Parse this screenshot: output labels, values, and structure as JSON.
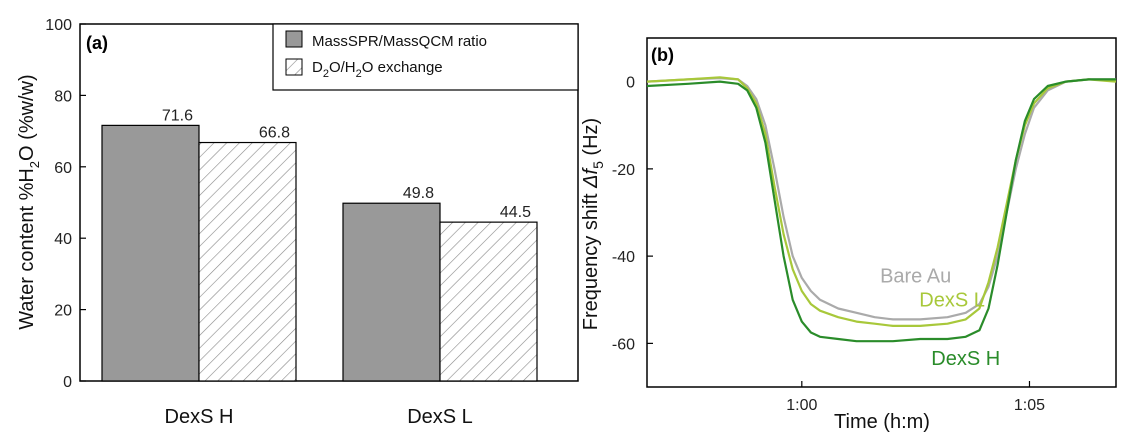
{
  "chart_data": [
    {
      "type": "bar",
      "panel_label": "(a)",
      "ylabel_parts": [
        "Water content %H",
        "2",
        "O (%w/w)"
      ],
      "ylim": [
        0,
        100
      ],
      "yticks": [
        0,
        20,
        40,
        60,
        80,
        100
      ],
      "categories": [
        "DexS H",
        "DexS L"
      ],
      "series": [
        {
          "name": "MassSPR/MassQCM ratio",
          "values": [
            71.6,
            49.8
          ],
          "fill": "#999999",
          "pattern": "solid"
        },
        {
          "name_parts": [
            "D",
            "2",
            "O/H",
            "2",
            "O exchange"
          ],
          "values": [
            66.8,
            44.5
          ],
          "fill": "#ffffff",
          "pattern": "hatch"
        }
      ],
      "data_labels": [
        "71.6",
        "66.8",
        "49.8",
        "44.5"
      ],
      "legend_position": "top-right"
    },
    {
      "type": "line",
      "panel_label": "(b)",
      "xlabel": "Time (h:m)",
      "ylabel_parts": [
        "Frequency shift ",
        "Δf",
        "5",
        " (Hz)"
      ],
      "xticks": [
        "1:00",
        "1:05"
      ],
      "xtick_minutes": [
        0,
        5
      ],
      "xlim_minutes": [
        -3.4,
        6.9
      ],
      "ylim": [
        -70,
        10
      ],
      "yticks": [
        0,
        -20,
        -40,
        -60
      ],
      "series": [
        {
          "name": "Bare Au",
          "color": "#aaaaaa",
          "x": [
            -3.4,
            -2.5,
            -1.8,
            -1.4,
            -1.2,
            -1.0,
            -0.8,
            -0.6,
            -0.4,
            -0.2,
            0.0,
            0.2,
            0.4,
            0.8,
            1.2,
            1.6,
            2.0,
            2.6,
            3.2,
            3.6,
            3.9,
            4.1,
            4.3,
            4.5,
            4.7,
            4.9,
            5.1,
            5.4,
            5.8,
            6.3,
            6.9
          ],
          "y": [
            0,
            0.5,
            0.8,
            0.5,
            -1,
            -4,
            -10,
            -20,
            -31,
            -40,
            -45,
            -48,
            -50,
            -52,
            -53,
            -54,
            -54.5,
            -54.5,
            -54,
            -53,
            -51,
            -47,
            -40,
            -30,
            -20,
            -12,
            -6,
            -2,
            0,
            0.5,
            0.5
          ]
        },
        {
          "name": "DexS L",
          "color": "#a8c83a",
          "x": [
            -3.4,
            -2.5,
            -1.8,
            -1.4,
            -1.2,
            -1.0,
            -0.8,
            -0.6,
            -0.4,
            -0.2,
            0.0,
            0.2,
            0.4,
            0.8,
            1.2,
            1.6,
            2.0,
            2.6,
            3.2,
            3.6,
            3.9,
            4.1,
            4.3,
            4.5,
            4.7,
            4.9,
            5.1,
            5.4,
            5.8,
            6.3,
            6.9
          ],
          "y": [
            0,
            0.5,
            1,
            0.5,
            -1.5,
            -5,
            -12,
            -24,
            -35,
            -43,
            -48,
            -51,
            -52.5,
            -54,
            -55,
            -55.5,
            -56,
            -56,
            -55.5,
            -54.5,
            -52,
            -46,
            -38,
            -28,
            -18,
            -10,
            -5,
            -1.5,
            0,
            0.5,
            0
          ]
        },
        {
          "name": "DexS H",
          "color": "#2a8c2a",
          "x": [
            -3.4,
            -2.5,
            -1.8,
            -1.4,
            -1.2,
            -1.0,
            -0.8,
            -0.6,
            -0.4,
            -0.2,
            0.0,
            0.2,
            0.4,
            0.8,
            1.2,
            1.6,
            2.0,
            2.6,
            3.2,
            3.6,
            3.9,
            4.1,
            4.3,
            4.5,
            4.7,
            4.9,
            5.1,
            5.4,
            5.8,
            6.3,
            6.9
          ],
          "y": [
            -1,
            -0.5,
            0,
            -0.5,
            -2,
            -6,
            -14,
            -27,
            -40,
            -50,
            -55,
            -57.5,
            -58.5,
            -59,
            -59.5,
            -59.5,
            -59.5,
            -59,
            -59,
            -58.5,
            -57,
            -52,
            -42,
            -30,
            -18,
            -9,
            -4,
            -1,
            0,
            0.5,
            0.5
          ]
        }
      ],
      "series_label_positions_minutes": [
        [
          2.5,
          -46
        ],
        [
          3.3,
          -51.5
        ],
        [
          3.6,
          -65
        ]
      ]
    }
  ]
}
